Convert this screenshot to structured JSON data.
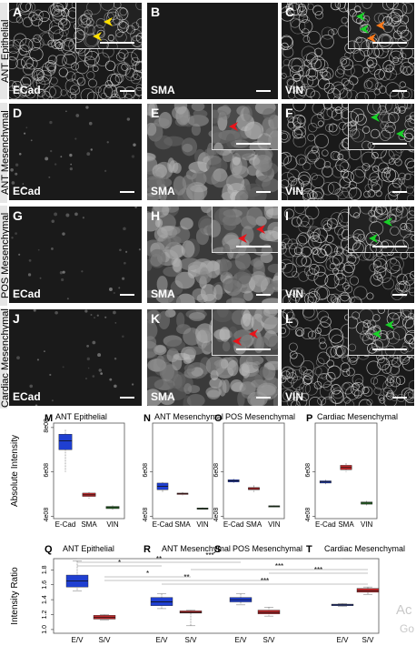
{
  "row_labels": [
    "ANT Epithelial",
    "ANT Mesenchymal",
    "POS Mesenchymal",
    "Cardiac Mesenchymal"
  ],
  "panels": [
    {
      "letter": "A",
      "stain": "ECad"
    },
    {
      "letter": "B",
      "stain": "SMA"
    },
    {
      "letter": "C",
      "stain": "VIN"
    },
    {
      "letter": "D",
      "stain": "ECad"
    },
    {
      "letter": "E",
      "stain": "SMA"
    },
    {
      "letter": "F",
      "stain": "VIN"
    },
    {
      "letter": "G",
      "stain": "ECad"
    },
    {
      "letter": "H",
      "stain": "SMA"
    },
    {
      "letter": "I",
      "stain": "VIN"
    },
    {
      "letter": "J",
      "stain": "ECad"
    },
    {
      "letter": "K",
      "stain": "SMA"
    },
    {
      "letter": "L",
      "stain": "VIN"
    }
  ],
  "colors": {
    "ecad": "#1f3fd1",
    "sma": "#c0282b",
    "vin": "#2c7a2a",
    "arrow_yellow": "#ffe000",
    "arrow_green": "#19d128",
    "arrow_orange": "#ff7a1a",
    "arrow_red": "#e8141a"
  },
  "chart_data": [
    {
      "type": "box",
      "letter": "M",
      "title": "ANT Epithelial",
      "ylabel": "Absolute Intensity",
      "categories": [
        "E-Cad",
        "SMA",
        "VIN"
      ],
      "yticks": [
        "4e08",
        "6e08",
        "8e08"
      ],
      "boxes": [
        {
          "min": 6.0,
          "q1": 7.0,
          "median": 7.4,
          "q3": 7.7,
          "max": 7.9
        },
        {
          "min": 4.8,
          "q1": 4.9,
          "median": 4.97,
          "q3": 5.05,
          "max": 5.1
        },
        {
          "min": 4.3,
          "q1": 4.35,
          "median": 4.4,
          "q3": 4.45,
          "max": 4.5
        }
      ]
    },
    {
      "type": "box",
      "letter": "N",
      "title": "ANT Mesenchymal",
      "categories": [
        "E-Cad",
        "SMA",
        "VIN"
      ],
      "yticks": [
        "4e08",
        "6e08"
      ],
      "boxes": [
        {
          "min": 5.1,
          "q1": 5.2,
          "median": 5.35,
          "q3": 5.5,
          "max": 5.55
        },
        {
          "min": 4.95,
          "q1": 5.0,
          "median": 5.02,
          "q3": 5.05,
          "max": 5.1
        },
        {
          "min": 4.3,
          "q1": 4.33,
          "median": 4.35,
          "q3": 4.38,
          "max": 4.4
        }
      ]
    },
    {
      "type": "box",
      "letter": "O",
      "title": "POS Mesenchymal",
      "categories": [
        "E-Cad",
        "SMA",
        "VIN"
      ],
      "yticks": [
        "4e08",
        "6e08"
      ],
      "boxes": [
        {
          "min": 5.5,
          "q1": 5.55,
          "median": 5.6,
          "q3": 5.65,
          "max": 5.7
        },
        {
          "min": 5.1,
          "q1": 5.2,
          "median": 5.25,
          "q3": 5.3,
          "max": 5.4
        },
        {
          "min": 4.4,
          "q1": 4.43,
          "median": 4.45,
          "q3": 4.48,
          "max": 4.5
        }
      ]
    },
    {
      "type": "box",
      "letter": "P",
      "title": "Cardiac Mesenchymal",
      "categories": [
        "E-Cad",
        "SMA",
        "VIN"
      ],
      "yticks": [
        "4e08",
        "6e08"
      ],
      "boxes": [
        {
          "min": 5.45,
          "q1": 5.5,
          "median": 5.55,
          "q3": 5.6,
          "max": 5.65
        },
        {
          "min": 6.0,
          "q1": 6.1,
          "median": 6.2,
          "q3": 6.3,
          "max": 6.4
        },
        {
          "min": 4.5,
          "q1": 4.55,
          "median": 4.6,
          "q3": 4.65,
          "max": 4.7
        }
      ]
    },
    {
      "type": "box",
      "title_letters": [
        "Q",
        "R",
        "S",
        "T"
      ],
      "titles": [
        "ANT Epithelial",
        "ANT Mesenchymal",
        "POS Mesenchymal",
        "Cardiac Mesenchymal"
      ],
      "ylabel": "Intensity Ratio",
      "yticks": [
        "1.0",
        "1.2",
        "1.4",
        "1.6",
        "1.8"
      ],
      "ylim": [
        0.95,
        1.95
      ],
      "categories": [
        "E/V",
        "S/V",
        "E/V",
        "S/V",
        "E/V",
        "S/V",
        "E/V",
        "S/V"
      ],
      "boxes": [
        {
          "min": 1.52,
          "q1": 1.57,
          "median": 1.65,
          "q3": 1.73,
          "max": 1.92
        },
        {
          "min": 1.13,
          "q1": 1.14,
          "median": 1.16,
          "q3": 1.19,
          "max": 1.2
        },
        {
          "min": 1.28,
          "q1": 1.32,
          "median": 1.37,
          "q3": 1.43,
          "max": 1.48
        },
        {
          "min": 1.05,
          "q1": 1.22,
          "median": 1.23,
          "q3": 1.25,
          "max": 1.26
        },
        {
          "min": 1.33,
          "q1": 1.37,
          "median": 1.4,
          "q3": 1.43,
          "max": 1.48
        },
        {
          "min": 1.18,
          "q1": 1.21,
          "median": 1.23,
          "q3": 1.26,
          "max": 1.3
        },
        {
          "min": 1.31,
          "q1": 1.32,
          "median": 1.33,
          "q3": 1.34,
          "max": 1.35
        },
        {
          "min": 1.47,
          "q1": 1.5,
          "median": 1.52,
          "q3": 1.55,
          "max": 1.57
        }
      ],
      "significance": [
        {
          "from": 0,
          "to": 2,
          "label": "*"
        },
        {
          "from": 0,
          "to": 4,
          "label": "**"
        },
        {
          "from": 0,
          "to": 6,
          "label": "***"
        },
        {
          "from": 1,
          "to": 3,
          "label": "*"
        },
        {
          "from": 1,
          "to": 5,
          "label": "**"
        },
        {
          "from": 3,
          "to": 7,
          "label": "***"
        },
        {
          "from": 5,
          "to": 7,
          "label": "***"
        },
        {
          "from": 2,
          "to": 7,
          "label": "***"
        }
      ]
    }
  ],
  "background_text": {
    "line1": "Ac",
    "line2": "Go"
  }
}
